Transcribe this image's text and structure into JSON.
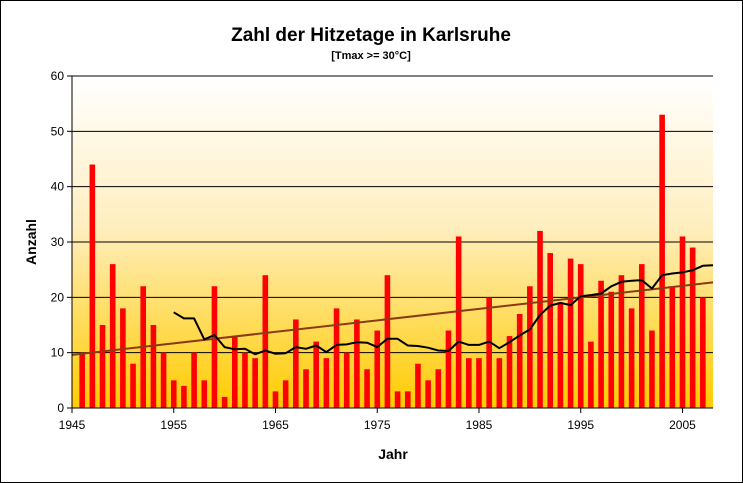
{
  "chart_data": {
    "type": "bar",
    "title": "Zahl der Hitzetage in Karlsruhe",
    "subtitle": "[Tmax >=  30°C]",
    "xlabel": "Jahr",
    "ylabel": "Anzahl",
    "xlim": [
      1945,
      2008
    ],
    "ylim": [
      0,
      60
    ],
    "y_ticks": [
      0,
      10,
      20,
      30,
      40,
      50,
      60
    ],
    "x_ticks": [
      1945,
      1955,
      1965,
      1975,
      1985,
      1995,
      2005
    ],
    "grid": true,
    "legend": "none",
    "colors": {
      "bars": "#ff0000",
      "moving_average": "#000000",
      "trend": "#8b3a14",
      "background_top": "#ffffff",
      "background_bottom": "#ffcc00"
    },
    "series": [
      {
        "type": "bar",
        "x": [
          1946,
          1947,
          1948,
          1949,
          1950,
          1951,
          1952,
          1953,
          1954,
          1955,
          1956,
          1957,
          1958,
          1959,
          1960,
          1961,
          1962,
          1963,
          1964,
          1965,
          1966,
          1967,
          1968,
          1969,
          1970,
          1971,
          1972,
          1973,
          1974,
          1975,
          1976,
          1977,
          1978,
          1979,
          1980,
          1981,
          1982,
          1983,
          1984,
          1985,
          1986,
          1987,
          1988,
          1989,
          1990,
          1991,
          1992,
          1993,
          1994,
          1995,
          1996,
          1997,
          1998,
          1999,
          2000,
          2001,
          2002,
          2003,
          2004,
          2005,
          2006,
          2007
        ],
        "values": [
          10,
          44,
          15,
          26,
          18,
          8,
          22,
          15,
          10,
          5,
          4,
          10,
          5,
          22,
          2,
          13,
          10,
          9,
          24,
          3,
          5,
          16,
          7,
          12,
          9,
          18,
          10,
          16,
          7,
          14,
          24,
          3,
          3,
          8,
          5,
          7,
          14,
          31,
          9,
          9,
          20,
          9,
          13,
          17,
          22,
          32,
          28,
          19,
          27,
          26,
          12,
          23,
          21,
          24,
          18,
          26,
          14,
          53,
          22,
          31,
          29,
          20
        ]
      },
      {
        "type": "line",
        "x": [
          1955,
          1956,
          1957,
          1958,
          1959,
          1960,
          1961,
          1962,
          1963,
          1964,
          1965,
          1966,
          1967,
          1968,
          1969,
          1970,
          1971,
          1972,
          1973,
          1974,
          1975,
          1976,
          1977,
          1978,
          1979,
          1980,
          1981,
          1982,
          1983,
          1984,
          1985,
          1986,
          1987,
          1988,
          1989,
          1990,
          1991,
          1992,
          1993,
          1994,
          1995,
          1996,
          1997,
          1998,
          1999,
          2000,
          2001,
          2002,
          2003,
          2004,
          2005,
          2006,
          2007,
          2008
        ],
        "values": [
          17.3,
          16.2,
          16.2,
          12.4,
          13.2,
          11.0,
          10.6,
          10.7,
          9.7,
          10.4,
          9.8,
          9.9,
          11.0,
          10.7,
          11.3,
          10.1,
          11.4,
          11.5,
          11.9,
          11.8,
          11.0,
          12.5,
          12.5,
          11.3,
          11.2,
          10.9,
          10.4,
          10.3,
          12.0,
          11.4,
          11.4,
          12.0,
          10.8,
          11.9,
          13.1,
          14.2,
          16.8,
          18.5,
          19.0,
          18.6,
          20.2,
          20.4,
          20.7,
          22.0,
          22.8,
          23.0,
          23.1,
          21.6,
          24.0,
          24.3,
          24.5,
          24.9,
          25.7,
          25.8
        ]
      },
      {
        "type": "trend",
        "x": [
          1945,
          2008
        ],
        "values": [
          9.6,
          22.7
        ]
      }
    ]
  }
}
